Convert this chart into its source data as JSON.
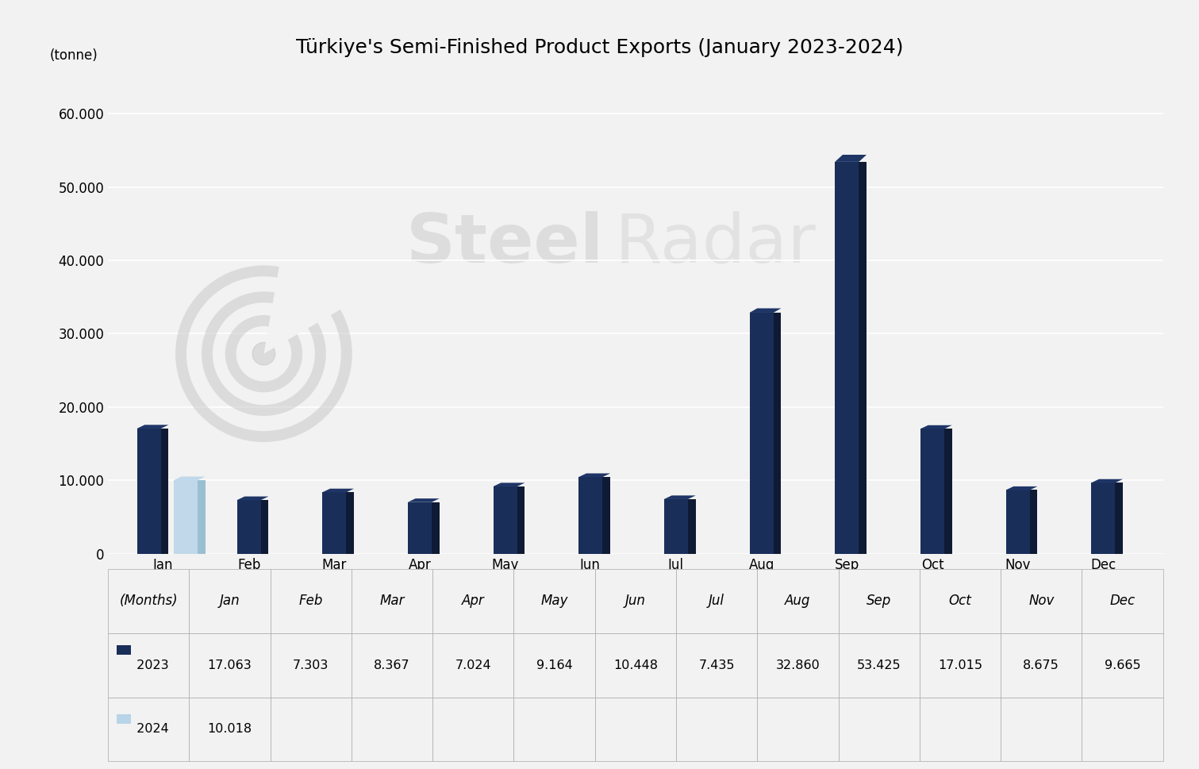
{
  "title": "Türkiye's Semi-Finished Product Exports (January 2023-2024)",
  "ylabel": "(tonne)",
  "xlabel": "(Months)",
  "months": [
    "Jan",
    "Feb",
    "Mar",
    "Apr",
    "May",
    "Jun",
    "Jul",
    "Aug",
    "Sep",
    "Oct",
    "Nov",
    "Dec"
  ],
  "data_2023": [
    17063,
    7303,
    8367,
    7024,
    9164,
    10448,
    7435,
    32860,
    53425,
    17015,
    8675,
    9665
  ],
  "data_2024": [
    10018,
    null,
    null,
    null,
    null,
    null,
    null,
    null,
    null,
    null,
    null,
    null
  ],
  "color_2023": "#1a2e5a",
  "color_2023_side": "#0f1a35",
  "color_2023_top": "#1e3566",
  "color_2024": "#b8d4e8",
  "color_2024_side": "#8ab8cc",
  "background_color": "#f2f2f2",
  "ylim": [
    0,
    65000
  ],
  "yticks": [
    0,
    10000,
    20000,
    30000,
    40000,
    50000,
    60000
  ],
  "ytick_labels": [
    "0",
    "10.000",
    "20.000",
    "30.000",
    "40.000",
    "50.000",
    "60.000"
  ],
  "title_fontsize": 18,
  "table_values_2023": [
    "17.063",
    "7.303",
    "8.367",
    "7.024",
    "9.164",
    "10.448",
    "7.435",
    "32.860",
    "53.425",
    "17.015",
    "8.675",
    "9.665"
  ],
  "table_values_2024": [
    "10.018",
    "",
    "",
    "",
    "",
    "",
    "",
    "",
    "",
    "",
    "",
    ""
  ]
}
